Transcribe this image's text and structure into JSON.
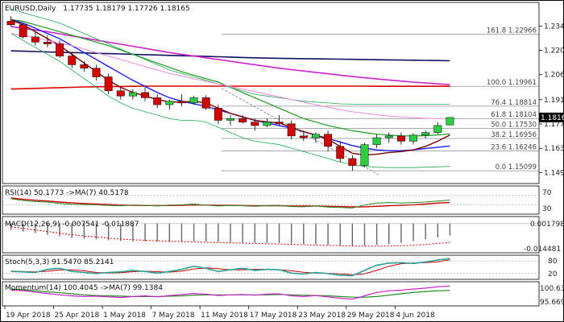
{
  "header": {
    "symbol": "EURUSD,Daily",
    "ohlc": "1.17735 1.18179 1.17726 1.18165"
  },
  "colors": {
    "bull": "#2ecc40",
    "bear": "#d40000",
    "wick": "#000000",
    "ma_blue": "#1a1aff",
    "ma_green": "#1f9a1f",
    "ma_magenta": "#cc22cc",
    "ma_red": "#dd0000",
    "ma_navy": "#101060",
    "ma_maroon": "#7a0000",
    "fib_line": "#555555",
    "env": "#22aa55",
    "env_pink": "#ee88dd",
    "panel_border": "#000000"
  },
  "price_axis": {
    "ticks": [
      "1.23430",
      "1.22030",
      "1.20630",
      "1.19190",
      "1.17790",
      "1.16390",
      "1.14990"
    ],
    "current_price": "1.18165",
    "ylim": [
      1.145,
      1.24
    ]
  },
  "date_axis": {
    "labels": [
      "19 Apr 2018",
      "25 Apr 2018",
      "1 May 2018",
      "7 May 2018",
      "11 May 2018",
      "17 May 2018",
      "23 May 2018",
      "29 May 2018",
      "4 Jun 2018"
    ],
    "label_bars": [
      0,
      4,
      8,
      12,
      16,
      20,
      24,
      28,
      32
    ]
  },
  "fibonacci": [
    {
      "label": "161.8 1.22966",
      "value": 1.22966
    },
    {
      "label": "100.0 1.19961",
      "value": 1.19961
    },
    {
      "label": "76.4 1.18814",
      "value": 1.18814
    },
    {
      "label": "61.8 1.18104",
      "value": 1.18104
    },
    {
      "label": "50.0 1.17530",
      "value": 1.1753
    },
    {
      "label": "38.2 1.16956",
      "value": 1.16956
    },
    {
      "label": "23.6 1.16246",
      "value": 1.16246
    },
    {
      "label": "0.0 1.15099",
      "value": 1.15099
    }
  ],
  "indicators": {
    "rsi": {
      "label": "RSI(14) 50.1773 ->MA(7) 40.5178",
      "ticks": [
        "70",
        "30"
      ],
      "ylim": [
        0,
        100
      ]
    },
    "macd": {
      "label": "MACD(12,26,9) -0.007541 -0.011887",
      "ticks": [
        "0.001798",
        "-0.014481"
      ],
      "ylim": [
        -0.0175,
        0.003
      ]
    },
    "stoch": {
      "label": "Stoch(5,3,3) 91.5470 85.2141",
      "ticks": [
        "80",
        "20"
      ],
      "ylim": [
        0,
        100
      ]
    },
    "momentum": {
      "label": "Momentum(14) 100.4045 ->MA(7) 99.1384",
      "ticks": [
        "100.6305",
        "95.6695"
      ],
      "ylim": [
        95.0,
        101.2
      ]
    }
  },
  "chart_data": {
    "type": "candlestick",
    "title": "EURUSD,Daily",
    "ylim": [
      1.145,
      1.24
    ],
    "candles": [
      {
        "o": 1.237,
        "h": 1.24,
        "l": 1.234,
        "c": 1.235
      },
      {
        "o": 1.235,
        "h": 1.236,
        "l": 1.227,
        "c": 1.228
      },
      {
        "o": 1.228,
        "h": 1.231,
        "l": 1.223,
        "c": 1.225
      },
      {
        "o": 1.225,
        "h": 1.229,
        "l": 1.222,
        "c": 1.224
      },
      {
        "o": 1.224,
        "h": 1.226,
        "l": 1.216,
        "c": 1.217
      },
      {
        "o": 1.217,
        "h": 1.219,
        "l": 1.21,
        "c": 1.212
      },
      {
        "o": 1.212,
        "h": 1.214,
        "l": 1.208,
        "c": 1.21
      },
      {
        "o": 1.21,
        "h": 1.212,
        "l": 1.203,
        "c": 1.205
      },
      {
        "o": 1.205,
        "h": 1.207,
        "l": 1.195,
        "c": 1.197
      },
      {
        "o": 1.197,
        "h": 1.199,
        "l": 1.192,
        "c": 1.194
      },
      {
        "o": 1.194,
        "h": 1.198,
        "l": 1.192,
        "c": 1.196
      },
      {
        "o": 1.196,
        "h": 1.199,
        "l": 1.191,
        "c": 1.193
      },
      {
        "o": 1.193,
        "h": 1.195,
        "l": 1.187,
        "c": 1.189
      },
      {
        "o": 1.189,
        "h": 1.192,
        "l": 1.186,
        "c": 1.191
      },
      {
        "o": 1.191,
        "h": 1.195,
        "l": 1.188,
        "c": 1.19
      },
      {
        "o": 1.19,
        "h": 1.194,
        "l": 1.189,
        "c": 1.193
      },
      {
        "o": 1.193,
        "h": 1.1945,
        "l": 1.186,
        "c": 1.187
      },
      {
        "o": 1.187,
        "h": 1.189,
        "l": 1.178,
        "c": 1.18
      },
      {
        "o": 1.18,
        "h": 1.183,
        "l": 1.177,
        "c": 1.181
      },
      {
        "o": 1.181,
        "h": 1.183,
        "l": 1.178,
        "c": 1.179
      },
      {
        "o": 1.179,
        "h": 1.181,
        "l": 1.174,
        "c": 1.177
      },
      {
        "o": 1.177,
        "h": 1.181,
        "l": 1.176,
        "c": 1.179
      },
      {
        "o": 1.179,
        "h": 1.183,
        "l": 1.177,
        "c": 1.178
      },
      {
        "o": 1.178,
        "h": 1.18,
        "l": 1.169,
        "c": 1.171
      },
      {
        "o": 1.171,
        "h": 1.174,
        "l": 1.168,
        "c": 1.17
      },
      {
        "o": 1.17,
        "h": 1.173,
        "l": 1.167,
        "c": 1.172
      },
      {
        "o": 1.172,
        "h": 1.174,
        "l": 1.162,
        "c": 1.165
      },
      {
        "o": 1.165,
        "h": 1.168,
        "l": 1.156,
        "c": 1.158
      },
      {
        "o": 1.158,
        "h": 1.16,
        "l": 1.151,
        "c": 1.154
      },
      {
        "o": 1.154,
        "h": 1.167,
        "l": 1.153,
        "c": 1.166
      },
      {
        "o": 1.166,
        "h": 1.172,
        "l": 1.164,
        "c": 1.17
      },
      {
        "o": 1.17,
        "h": 1.173,
        "l": 1.167,
        "c": 1.171
      },
      {
        "o": 1.171,
        "h": 1.173,
        "l": 1.166,
        "c": 1.168
      },
      {
        "o": 1.168,
        "h": 1.1725,
        "l": 1.166,
        "c": 1.1715
      },
      {
        "o": 1.1715,
        "h": 1.174,
        "l": 1.1695,
        "c": 1.173
      },
      {
        "o": 1.173,
        "h": 1.179,
        "l": 1.172,
        "c": 1.177
      },
      {
        "o": 1.17735,
        "h": 1.18179,
        "l": 1.17726,
        "c": 1.18165
      }
    ],
    "series": [
      {
        "id": "ma_navy",
        "values": [
          1.22,
          1.2198,
          1.2196,
          1.2194,
          1.2192,
          1.219,
          1.2188,
          1.2186,
          1.2184,
          1.2182,
          1.218,
          1.2178,
          1.2176,
          1.2174,
          1.2172,
          1.217,
          1.2168,
          1.2166,
          1.2164,
          1.2162,
          1.216,
          1.2158,
          1.2157,
          1.2156,
          1.2155,
          1.2154,
          1.2153,
          1.2152,
          1.2151,
          1.215,
          1.2149,
          1.2148,
          1.2147,
          1.2146,
          1.2145,
          1.2144,
          1.2143
        ]
      },
      {
        "id": "ma_magenta",
        "values": [
          1.234,
          1.233,
          1.232,
          1.231,
          1.2298,
          1.2286,
          1.2274,
          1.2262,
          1.225,
          1.2238,
          1.2226,
          1.2214,
          1.2202,
          1.219,
          1.218,
          1.217,
          1.216,
          1.215,
          1.214,
          1.213,
          1.212,
          1.211,
          1.21,
          1.2092,
          1.2084,
          1.2076,
          1.2068,
          1.206,
          1.2052,
          1.2045,
          1.2038,
          1.2032,
          1.2026,
          1.202,
          1.2015,
          1.201,
          1.2005
        ]
      },
      {
        "id": "ma_red",
        "values": [
          1.198,
          1.1982,
          1.1984,
          1.1986,
          1.1988,
          1.199,
          1.1992,
          1.1993,
          1.1994,
          1.1995,
          1.1996,
          1.1997,
          1.1997,
          1.1997,
          1.1997,
          1.1997,
          1.1997,
          1.1997,
          1.1997,
          1.1997,
          1.1997,
          1.1997,
          1.1997,
          1.1997,
          1.1997,
          1.1997,
          1.1997,
          1.1997,
          1.1997,
          1.1997,
          1.1996,
          1.1996,
          1.1996,
          1.1996,
          1.1996,
          1.1996,
          1.1996
        ]
      },
      {
        "id": "ma_green",
        "values": [
          1.238,
          1.237,
          1.235,
          1.233,
          1.231,
          1.229,
          1.227,
          1.225,
          1.223,
          1.2205,
          1.218,
          1.2155,
          1.213,
          1.2105,
          1.208,
          1.206,
          1.204,
          1.202,
          1.199,
          1.196,
          1.193,
          1.19,
          1.187,
          1.184,
          1.181,
          1.179,
          1.177,
          1.1755,
          1.174,
          1.173,
          1.172,
          1.1715,
          1.171,
          1.171,
          1.1712,
          1.1716,
          1.1722
        ]
      },
      {
        "id": "ma_blue",
        "values": [
          1.238,
          1.236,
          1.233,
          1.23,
          1.227,
          1.223,
          1.219,
          1.215,
          1.211,
          1.207,
          1.203,
          1.1995,
          1.196,
          1.193,
          1.191,
          1.1895,
          1.188,
          1.186,
          1.184,
          1.182,
          1.18,
          1.1785,
          1.177,
          1.1755,
          1.1735,
          1.1715,
          1.1695,
          1.1675,
          1.1655,
          1.164,
          1.163,
          1.1625,
          1.1625,
          1.163,
          1.1638,
          1.1645,
          1.1652
        ]
      },
      {
        "id": "ma_maroon",
        "values": [
          1.238,
          1.235,
          1.231,
          1.227,
          1.223,
          1.218,
          1.213,
          1.208,
          1.203,
          1.199,
          1.196,
          1.194,
          1.192,
          1.1905,
          1.1905,
          1.191,
          1.19,
          1.187,
          1.184,
          1.182,
          1.18,
          1.179,
          1.1785,
          1.176,
          1.1735,
          1.1715,
          1.169,
          1.165,
          1.161,
          1.16,
          1.1605,
          1.1615,
          1.162,
          1.163,
          1.165,
          1.168,
          1.1715
        ]
      },
      {
        "id": "env_green_upper",
        "values": [
          1.244,
          1.242,
          1.24,
          1.238,
          1.236,
          1.233,
          1.23,
          1.227,
          1.224,
          1.221,
          1.218,
          1.215,
          1.212,
          1.209,
          1.207,
          1.205,
          1.203,
          1.201,
          1.199,
          1.197,
          1.195,
          1.194,
          1.193,
          1.192,
          1.191,
          1.1905,
          1.19,
          1.1895,
          1.1893,
          1.1892,
          1.1892,
          1.1893,
          1.1893,
          1.1893,
          1.1893,
          1.1893,
          1.1893
        ]
      },
      {
        "id": "env_green_lower",
        "values": [
          1.23,
          1.226,
          1.222,
          1.218,
          1.214,
          1.209,
          1.204,
          1.199,
          1.194,
          1.19,
          1.187,
          1.185,
          1.183,
          1.181,
          1.18,
          1.18,
          1.179,
          1.176,
          1.173,
          1.17,
          1.168,
          1.167,
          1.166,
          1.164,
          1.162,
          1.16,
          1.158,
          1.156,
          1.1545,
          1.1535,
          1.153,
          1.1528,
          1.1528,
          1.1528,
          1.153,
          1.1532,
          1.1535
        ]
      },
      {
        "id": "env_pink",
        "values": [
          1.23,
          1.229,
          1.2275,
          1.226,
          1.2245,
          1.223,
          1.221,
          1.219,
          1.217,
          1.215,
          1.213,
          1.211,
          1.209,
          1.207,
          1.2055,
          1.204,
          1.2025,
          1.201,
          1.1995,
          1.198,
          1.1965,
          1.195,
          1.1935,
          1.192,
          1.1905,
          1.189,
          1.1875,
          1.1862,
          1.185,
          1.184,
          1.1832,
          1.1825,
          1.182,
          1.1815,
          1.1812,
          1.181,
          1.1808
        ]
      }
    ],
    "rsi": {
      "values": [
        55,
        48,
        44,
        42,
        36,
        33,
        32,
        31,
        28,
        27,
        30,
        29,
        26,
        30,
        31,
        34,
        30,
        26,
        28,
        27,
        25,
        28,
        29,
        24,
        23,
        26,
        22,
        20,
        18,
        30,
        38,
        40,
        38,
        40,
        42,
        46,
        50
      ],
      "ma": [
        58,
        53,
        49,
        46,
        42,
        39,
        36,
        34,
        32,
        30,
        29,
        28,
        28,
        28,
        29,
        30,
        30,
        29,
        29,
        28,
        27,
        27,
        27,
        26,
        26,
        26,
        25,
        24,
        23,
        23,
        25,
        27,
        29,
        31,
        34,
        38,
        40
      ]
    },
    "macd": {
      "hist": [
        -0.004,
        -0.005,
        -0.006,
        -0.007,
        -0.008,
        -0.009,
        -0.0095,
        -0.01,
        -0.0105,
        -0.011,
        -0.0112,
        -0.0113,
        -0.0115,
        -0.0115,
        -0.0114,
        -0.0112,
        -0.0113,
        -0.0116,
        -0.0118,
        -0.012,
        -0.0122,
        -0.0123,
        -0.0124,
        -0.0127,
        -0.013,
        -0.0132,
        -0.0135,
        -0.0138,
        -0.0141,
        -0.014,
        -0.0136,
        -0.013,
        -0.0122,
        -0.0112,
        -0.01,
        -0.0088,
        -0.0075
      ],
      "signal": [
        -0.002,
        -0.003,
        -0.004,
        -0.005,
        -0.006,
        -0.007,
        -0.0078,
        -0.0085,
        -0.0092,
        -0.0098,
        -0.0102,
        -0.0106,
        -0.0109,
        -0.0112,
        -0.0114,
        -0.0116,
        -0.0118,
        -0.012,
        -0.0122,
        -0.0124,
        -0.0126,
        -0.0128,
        -0.013,
        -0.0132,
        -0.0134,
        -0.0136,
        -0.0138,
        -0.014,
        -0.0142,
        -0.0143,
        -0.0143,
        -0.0142,
        -0.014,
        -0.0137,
        -0.0132,
        -0.0126,
        -0.0119
      ]
    },
    "stoch": {
      "k": [
        30,
        28,
        25,
        40,
        45,
        30,
        25,
        20,
        25,
        28,
        35,
        30,
        22,
        30,
        40,
        55,
        45,
        30,
        38,
        45,
        35,
        40,
        38,
        22,
        18,
        25,
        20,
        12,
        10,
        35,
        60,
        70,
        72,
        68,
        75,
        85,
        91.5
      ],
      "d": [
        32,
        30,
        28,
        31,
        37,
        38,
        33,
        25,
        23,
        24,
        29,
        31,
        29,
        27,
        31,
        42,
        47,
        43,
        38,
        38,
        40,
        40,
        38,
        33,
        26,
        22,
        21,
        19,
        14,
        19,
        35,
        55,
        67,
        70,
        72,
        76,
        85.2
      ]
    },
    "momentum": {
      "values": [
        99.2,
        99.0,
        98.6,
        98.2,
        97.8,
        97.5,
        97.3,
        97.4,
        97.2,
        97.0,
        97.3,
        97.5,
        97.2,
        97.6,
        97.9,
        98.2,
        98.0,
        97.6,
        97.8,
        97.9,
        97.7,
        98.0,
        98.1,
        97.5,
        97.3,
        97.6,
        97.2,
        96.8,
        96.5,
        97.5,
        98.5,
        99.0,
        99.2,
        99.5,
        99.8,
        100.2,
        100.4
      ],
      "ma": [
        99.5,
        99.3,
        99.0,
        98.7,
        98.4,
        98.1,
        97.8,
        97.6,
        97.5,
        97.4,
        97.3,
        97.3,
        97.3,
        97.4,
        97.5,
        97.7,
        97.8,
        97.8,
        97.8,
        97.8,
        97.8,
        97.8,
        97.9,
        97.8,
        97.7,
        97.6,
        97.5,
        97.3,
        97.1,
        97.1,
        97.3,
        97.7,
        98.1,
        98.5,
        98.8,
        99.0,
        99.1
      ]
    }
  }
}
